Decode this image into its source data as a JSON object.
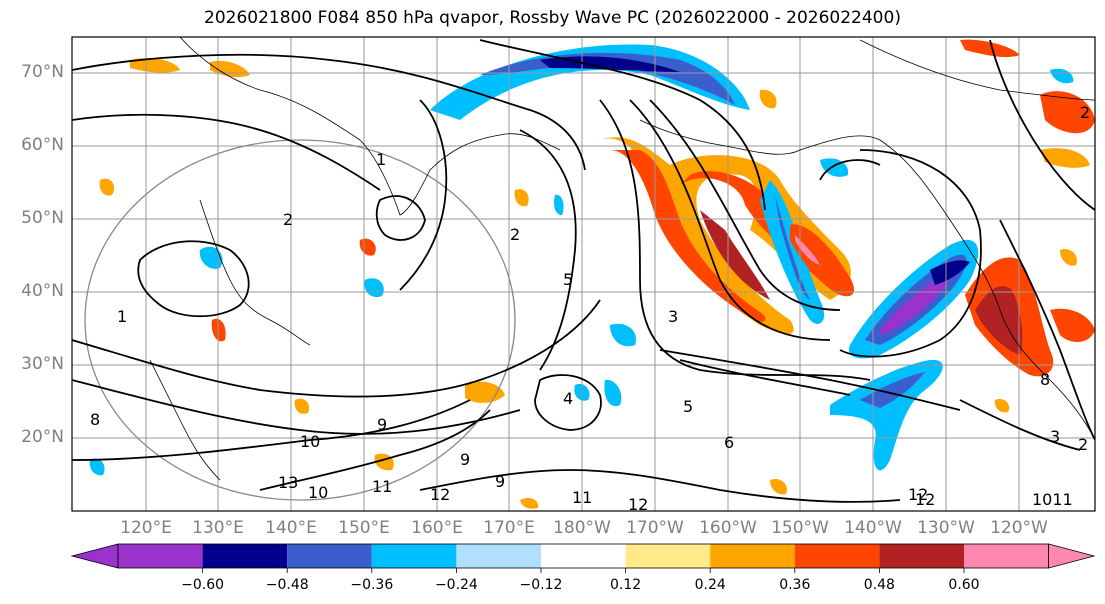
{
  "title": "2026021800 F084 850 hPa qvapor, Rossby Wave PC (2026022000 - 2026022400)",
  "map": {
    "lat_labels": [
      "70°N",
      "60°N",
      "50°N",
      "40°N",
      "30°N",
      "20°N"
    ],
    "lon_labels": [
      "120°E",
      "130°E",
      "140°E",
      "150°E",
      "160°E",
      "170°E",
      "180°W",
      "170°W",
      "160°W",
      "150°W",
      "140°W",
      "130°W",
      "120°W"
    ],
    "contour_labels": [
      "1",
      "1",
      "2",
      "2",
      "5",
      "3",
      "3",
      "4",
      "5",
      "6",
      "8",
      "8",
      "9",
      "9",
      "9",
      "10",
      "10",
      "11",
      "11",
      "12",
      "12",
      "12",
      "13",
      "1011",
      "12",
      "2",
      "2"
    ]
  },
  "colorbar": {
    "colors": [
      "#9933cc",
      "#00008b",
      "#3a5fcd",
      "#00bfff",
      "#b0e0ff",
      "#ffffff",
      "#ffe98a",
      "#ffa500",
      "#ff4500",
      "#b22222",
      "#ff88b0"
    ],
    "tick_labels": [
      "−0.60",
      "−0.48",
      "−0.36",
      "−0.24",
      "−0.12",
      "0.12",
      "0.24",
      "0.36",
      "0.48",
      "0.60"
    ]
  }
}
